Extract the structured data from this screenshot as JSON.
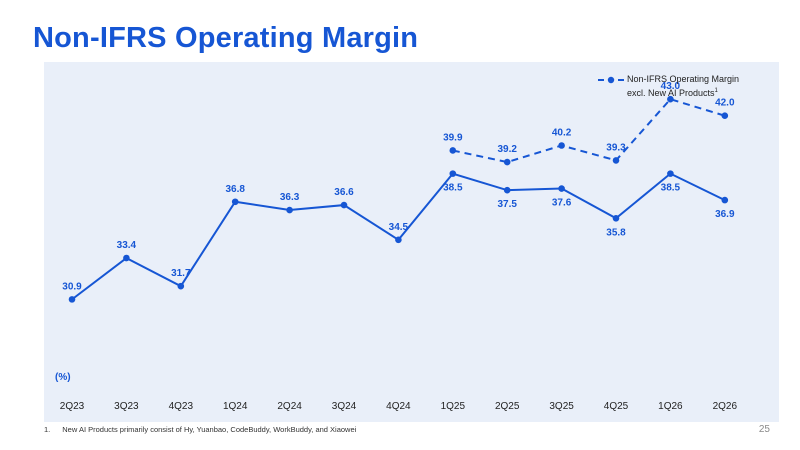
{
  "page": {
    "title": "Non-IFRS Operating Margin",
    "page_number": "25",
    "footnote_number": "1.",
    "footnote_text": "New AI Products primarily consist of Hy, Yuanbao, CodeBuddy, WorkBuddy, and Xiaowei",
    "unit_label": "(%)"
  },
  "colors": {
    "accent": "#1656d4",
    "background_panel": "#e9eff9"
  },
  "chart_data": {
    "type": "line",
    "title": "Non-IFRS Operating Margin",
    "xlabel": "",
    "ylabel": "(%)",
    "ylim": [
      25,
      47
    ],
    "grid": false,
    "legend_placement": "top-right",
    "categories": [
      "2Q23",
      "3Q23",
      "4Q23",
      "1Q24",
      "2Q24",
      "3Q24",
      "4Q24",
      "1Q25",
      "2Q25",
      "3Q25",
      "4Q25",
      "1Q26",
      "2Q26"
    ],
    "series": [
      {
        "values": [
          30.9,
          33.4,
          31.7,
          36.8,
          36.3,
          36.6,
          34.5,
          38.5,
          37.5,
          37.6,
          35.8,
          38.5,
          36.9
        ],
        "labels": [
          "30.9",
          "33.4",
          "31.7",
          "36.8",
          "36.3",
          "36.6",
          "34.5",
          "38.5",
          "37.5",
          "37.6",
          "35.8",
          "38.5",
          "36.9"
        ],
        "style": "solid"
      },
      {
        "name": "Non-IFRS Operating Margin excl. New AI Products",
        "name_line1": "Non-IFRS Operating Margin",
        "name_line2": "excl. New AI Products",
        "name_superscript": "1",
        "values": [
          null,
          null,
          null,
          null,
          null,
          null,
          null,
          39.9,
          39.2,
          40.2,
          39.3,
          43.0,
          42.0
        ],
        "labels": [
          "",
          "",
          "",
          "",
          "",
          "",
          "",
          "39.9",
          "39.2",
          "40.2",
          "39.3",
          "43.0",
          "42.0"
        ],
        "style": "dashed"
      }
    ]
  }
}
